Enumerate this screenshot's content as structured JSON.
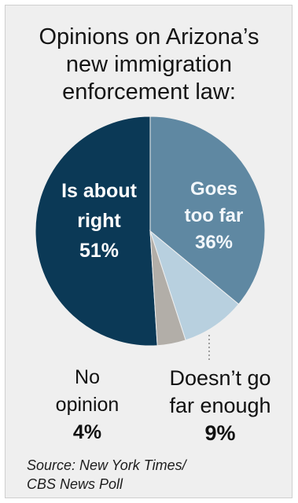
{
  "title": {
    "line1": "Opinions on Arizona’s",
    "line2": "new immigration",
    "line3": "enforcement law:"
  },
  "source": {
    "line1": "Source: New York Times/",
    "line2": "CBS News Poll"
  },
  "chart_data": {
    "type": "pie",
    "title": "Opinions on Arizona’s new immigration enforcement law:",
    "slices": [
      {
        "label": "Is about right",
        "label_lines": [
          "Is about",
          "right"
        ],
        "value": 51,
        "value_text": "51%",
        "color": "#0b3956",
        "label_color": "#ffffff"
      },
      {
        "label": "Goes too far",
        "label_lines": [
          "Goes",
          "too far"
        ],
        "value": 36,
        "value_text": "36%",
        "color": "#5f88a2",
        "label_color": "#f2f7fb"
      },
      {
        "label": "Doesn’t go far enough",
        "label_lines": [
          "Doesn’t go",
          "far enough"
        ],
        "value": 9,
        "value_text": "9%",
        "color": "#b8d0df",
        "label_color": "#111111"
      },
      {
        "label": "No opinion",
        "label_lines": [
          "No",
          "opinion"
        ],
        "value": 4,
        "value_text": "4%",
        "color": "#b2aea8",
        "label_color": "#111111"
      }
    ]
  },
  "source_text": "Source: New York Times/ CBS News Poll"
}
